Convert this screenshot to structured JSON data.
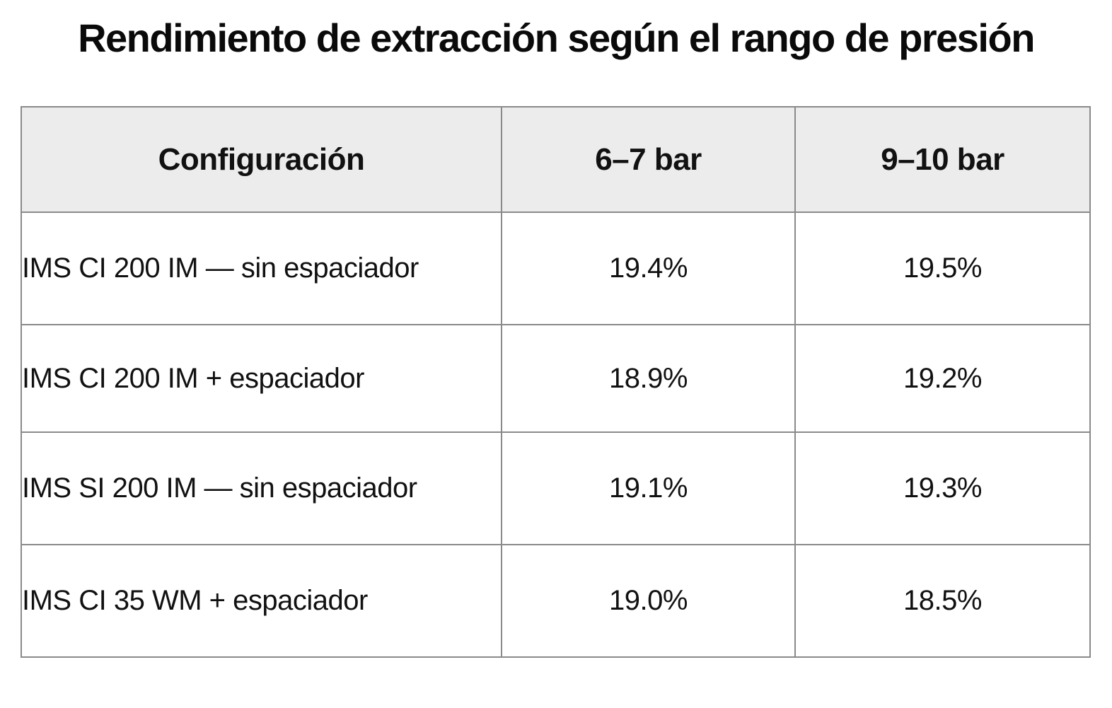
{
  "title": "Rendimiento de extracción según el rango de presión",
  "table": {
    "headers": [
      "Configuración",
      "6–7 bar",
      "9–10 bar"
    ],
    "rows": [
      {
        "configuracion": "IMS CI 200 IM — sin espaciador",
        "bar_6_7": "19.4%",
        "bar_9_10": "19.5%"
      },
      {
        "configuracion": "IMS CI 200 IM + espaciador",
        "bar_6_7": "18.9%",
        "bar_9_10": "19.2%"
      },
      {
        "configuracion": "IMS SI 200 IM — sin espaciador",
        "bar_6_7": "19.1%",
        "bar_9_10": "19.3%"
      },
      {
        "configuracion": "IMS CI 35 WM + espaciador",
        "bar_6_7": "19.0%",
        "bar_9_10": "18.5%"
      }
    ]
  },
  "colors": {
    "header_background": "#ececec",
    "border": "#8a8a8a",
    "text": "#111111"
  }
}
